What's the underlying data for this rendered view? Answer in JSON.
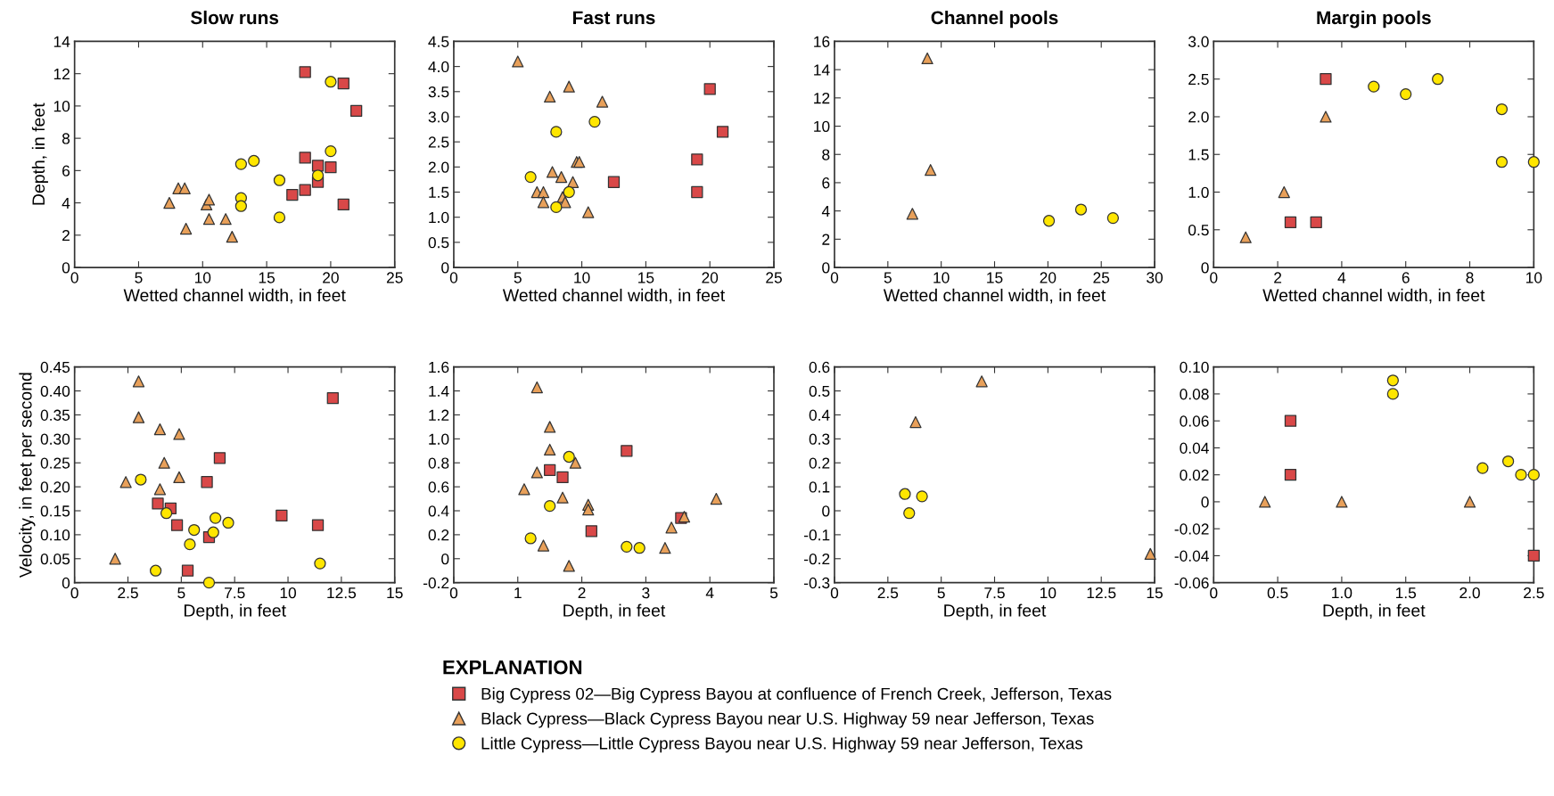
{
  "chart_data": [
    {
      "type": "scatter",
      "title": "Slow runs",
      "xlabel": "Wetted channel width, in feet",
      "ylabel": "Depth, in feet",
      "xlim": [
        0,
        25
      ],
      "ylim": [
        0,
        14
      ],
      "xticks": [
        0,
        5,
        10,
        15,
        20,
        25
      ],
      "yticks": [
        0,
        2,
        4,
        6,
        8,
        10,
        12,
        14
      ],
      "series": [
        {
          "color": "#d94848",
          "marker": "square",
          "x": [
            18,
            21,
            22,
            18,
            19,
            20,
            19,
            18,
            17,
            21
          ],
          "values": [
            12.1,
            11.4,
            9.7,
            6.8,
            6.3,
            6.2,
            5.3,
            4.8,
            4.5,
            3.9
          ]
        },
        {
          "color": "#e8a05a",
          "marker": "triangle",
          "x": [
            8.1,
            8.6,
            7.4,
            10.3,
            10.5,
            8.7,
            10.5,
            11.8,
            12.3
          ],
          "values": [
            4.9,
            4.9,
            4.0,
            3.9,
            4.2,
            2.4,
            3.0,
            3.0,
            1.9
          ]
        },
        {
          "color": "#ffe600",
          "marker": "circle",
          "x": [
            20,
            20,
            13,
            14,
            16,
            19,
            13,
            13,
            16
          ],
          "values": [
            11.5,
            7.2,
            6.4,
            6.6,
            5.4,
            5.7,
            4.3,
            3.8,
            3.1
          ]
        }
      ]
    },
    {
      "type": "scatter",
      "title": "Fast runs",
      "xlabel": "Wetted channel width, in feet",
      "xlim": [
        0,
        25
      ],
      "ylim": [
        0,
        4.5
      ],
      "xticks": [
        0,
        5,
        10,
        15,
        20,
        25
      ],
      "yticks": [
        0,
        0.5,
        {
          "value": 1,
          "label": "1.0"
        },
        1.5,
        {
          "value": 2,
          "label": "2.0"
        },
        2.5,
        {
          "value": 3,
          "label": "3.0"
        },
        3.5,
        {
          "value": 4,
          "label": "4.0"
        },
        4.5
      ],
      "series": [
        {
          "color": "#d94848",
          "marker": "square",
          "x": [
            20,
            21,
            19,
            12.5,
            19
          ],
          "values": [
            3.55,
            2.7,
            2.15,
            1.7,
            1.5
          ]
        },
        {
          "color": "#e8a05a",
          "marker": "triangle",
          "x": [
            5,
            9,
            7.5,
            11.6,
            9.6,
            9.8,
            7.7,
            8.4,
            9.3,
            6.5,
            7,
            8.5,
            7,
            8.7,
            10.5
          ],
          "values": [
            4.1,
            3.6,
            3.4,
            3.3,
            2.1,
            2.1,
            1.9,
            1.8,
            1.7,
            1.5,
            1.5,
            1.4,
            1.3,
            1.3,
            1.1
          ]
        },
        {
          "color": "#ffe600",
          "marker": "circle",
          "x": [
            11,
            8,
            6,
            9,
            8
          ],
          "values": [
            2.9,
            2.7,
            1.8,
            1.5,
            1.2
          ]
        }
      ]
    },
    {
      "type": "scatter",
      "title": "Channel pools",
      "xlabel": "Wetted channel width, in feet",
      "xlim": [
        0,
        30
      ],
      "ylim": [
        0,
        16
      ],
      "xticks": [
        0,
        5,
        10,
        15,
        20,
        25,
        30
      ],
      "yticks": [
        0,
        2,
        4,
        6,
        8,
        10,
        12,
        14,
        16
      ],
      "series": [
        {
          "color": "#e8a05a",
          "marker": "triangle",
          "x": [
            8.7,
            9,
            7.3
          ],
          "values": [
            14.8,
            6.9,
            3.8
          ]
        },
        {
          "color": "#ffe600",
          "marker": "circle",
          "x": [
            20.1,
            23.1,
            26.1
          ],
          "values": [
            3.3,
            4.1,
            3.5
          ]
        }
      ]
    },
    {
      "type": "scatter",
      "title": "Margin pools",
      "xlabel": "Wetted channel width, in feet",
      "xlim": [
        0,
        10
      ],
      "ylim": [
        0,
        3
      ],
      "xticks": [
        0,
        2,
        4,
        6,
        8,
        10
      ],
      "yticks": [
        0,
        0.5,
        {
          "value": 1,
          "label": "1.0"
        },
        1.5,
        {
          "value": 2,
          "label": "2.0"
        },
        2.5,
        {
          "value": 3,
          "label": "3.0"
        }
      ],
      "series": [
        {
          "color": "#d94848",
          "marker": "square",
          "x": [
            3.5,
            2.4,
            3.2
          ],
          "values": [
            2.5,
            0.6,
            0.6
          ]
        },
        {
          "color": "#e8a05a",
          "marker": "triangle",
          "x": [
            3.5,
            2.2,
            1.0
          ],
          "values": [
            2.0,
            1.0,
            0.4
          ]
        },
        {
          "color": "#ffe600",
          "marker": "circle",
          "x": [
            5,
            6,
            7,
            9,
            9,
            10
          ],
          "values": [
            2.4,
            2.3,
            2.5,
            2.1,
            1.4,
            1.4
          ]
        }
      ]
    },
    {
      "type": "scatter",
      "xlabel": "Depth, in feet",
      "ylabel": "Velocity, in feet per second",
      "xlim": [
        0,
        15
      ],
      "ylim": [
        0,
        0.45
      ],
      "xticks": [
        0,
        2.5,
        5,
        7.5,
        10,
        12.5,
        15
      ],
      "yticks": [
        0,
        0.05,
        {
          "value": 0.1,
          "label": "0.10"
        },
        0.15,
        {
          "value": 0.2,
          "label": "0.20"
        },
        0.25,
        {
          "value": 0.3,
          "label": "0.30"
        },
        0.35,
        {
          "value": 0.4,
          "label": "0.40"
        },
        0.45
      ],
      "series": [
        {
          "color": "#d94848",
          "marker": "square",
          "x": [
            12.1,
            6.8,
            6.2,
            3.9,
            4.5,
            4.8,
            6.3,
            9.7,
            11.4,
            5.3
          ],
          "values": [
            0.385,
            0.26,
            0.21,
            0.165,
            0.155,
            0.12,
            0.095,
            0.14,
            0.12,
            0.025
          ]
        },
        {
          "color": "#e8a05a",
          "marker": "triangle",
          "x": [
            3,
            3,
            4,
            4.9,
            4.2,
            4.9,
            2.4,
            4,
            1.9
          ],
          "values": [
            0.42,
            0.345,
            0.32,
            0.31,
            0.25,
            0.22,
            0.21,
            0.195,
            0.05
          ]
        },
        {
          "color": "#ffe600",
          "marker": "circle",
          "x": [
            3.1,
            4.3,
            6.6,
            7.2,
            5.6,
            6.5,
            5.4,
            3.8,
            11.5,
            6.3
          ],
          "values": [
            0.215,
            0.145,
            0.135,
            0.125,
            0.11,
            0.105,
            0.08,
            0.025,
            0.04,
            0.0
          ]
        }
      ]
    },
    {
      "type": "scatter",
      "xlabel": "Depth, in feet",
      "xlim": [
        0,
        5
      ],
      "ylim": [
        -0.2,
        1.6
      ],
      "xticks": [
        0,
        1,
        2,
        3,
        4,
        5
      ],
      "yticks": [
        {
          "value": -0.2,
          "label": "-0.2"
        },
        0,
        0.2,
        0.4,
        0.6,
        0.8,
        {
          "value": 1,
          "label": "1.0"
        },
        1.2,
        1.4,
        1.6
      ],
      "series": [
        {
          "color": "#d94848",
          "marker": "square",
          "x": [
            2.7,
            1.5,
            1.7,
            3.55,
            2.15
          ],
          "values": [
            0.9,
            0.74,
            0.68,
            0.34,
            0.23
          ]
        },
        {
          "color": "#e8a05a",
          "marker": "triangle",
          "x": [
            1.3,
            1.5,
            1.5,
            1.9,
            1.3,
            1.1,
            1.7,
            2.1,
            2.1,
            4.1,
            3.6,
            3.4,
            1.4,
            3.3,
            1.8
          ],
          "values": [
            1.43,
            1.1,
            0.91,
            0.8,
            0.72,
            0.58,
            0.51,
            0.45,
            0.41,
            0.5,
            0.35,
            0.26,
            0.11,
            0.09,
            -0.06
          ]
        },
        {
          "color": "#ffe600",
          "marker": "circle",
          "x": [
            1.8,
            1.5,
            1.2,
            2.7,
            2.9
          ],
          "values": [
            0.85,
            0.44,
            0.17,
            0.1,
            0.09
          ]
        }
      ]
    },
    {
      "type": "scatter",
      "xlabel": "Depth, in feet",
      "xlim": [
        0,
        15
      ],
      "ylim": [
        -0.3,
        0.6
      ],
      "xticks": [
        0,
        2.5,
        5,
        7.5,
        10,
        12.5,
        15
      ],
      "yticks": [
        {
          "value": -0.3,
          "label": "-0.3"
        },
        {
          "value": -0.2,
          "label": "-0.2"
        },
        {
          "value": -0.1,
          "label": "-0.1"
        },
        0,
        0.1,
        0.2,
        0.3,
        0.4,
        0.5,
        0.6
      ],
      "series": [
        {
          "color": "#e8a05a",
          "marker": "triangle",
          "x": [
            6.9,
            3.8,
            14.8
          ],
          "values": [
            0.54,
            0.37,
            -0.18
          ]
        },
        {
          "color": "#ffe600",
          "marker": "circle",
          "x": [
            3.3,
            4.1,
            3.5
          ],
          "values": [
            0.07,
            0.06,
            -0.01
          ]
        }
      ]
    },
    {
      "type": "scatter",
      "xlabel": "Depth, in feet",
      "xlim": [
        0,
        2.5
      ],
      "ylim": [
        -0.06,
        0.1
      ],
      "xticks": [
        0,
        0.5,
        {
          "value": 1,
          "label": "1.0"
        },
        1.5,
        {
          "value": 2,
          "label": "2.0"
        },
        2.5
      ],
      "yticks": [
        {
          "value": -0.06,
          "label": "-0.06"
        },
        {
          "value": -0.04,
          "label": "-0.04"
        },
        {
          "value": -0.02,
          "label": "-0.02"
        },
        0,
        0.02,
        0.04,
        0.06,
        0.08,
        {
          "value": 0.1,
          "label": "0.10"
        }
      ],
      "legend": "bottom",
      "legend_title": "EXPLANATION",
      "series": [
        {
          "name": "Big Cypress 02—Big Cypress Bayou at confluence of French Creek, Jefferson, Texas",
          "color": "#d94848",
          "marker": "square",
          "x": [
            0.6,
            0.6,
            2.5
          ],
          "values": [
            0.06,
            0.02,
            -0.04
          ]
        },
        {
          "name": "Black Cypress—Black Cypress Bayou near U.S. Highway 59 near Jefferson, Texas",
          "color": "#e8a05a",
          "marker": "triangle",
          "x": [
            0.4,
            1.0,
            2.0
          ],
          "values": [
            0,
            0,
            0
          ]
        },
        {
          "name": "Little Cypress—Little Cypress Bayou near U.S. Highway 59 near Jefferson, Texas",
          "color": "#ffe600",
          "marker": "circle",
          "x": [
            1.4,
            1.4,
            2.1,
            2.3,
            2.4,
            2.5
          ],
          "values": [
            0.09,
            0.08,
            0.025,
            0.03,
            0.02,
            0.02
          ]
        }
      ]
    }
  ]
}
